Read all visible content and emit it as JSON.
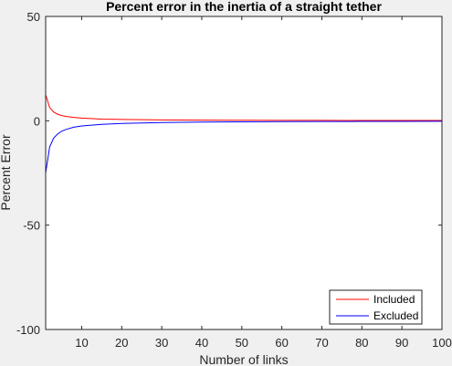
{
  "chart_data": {
    "type": "line",
    "title": "Percent error in the inertia of a straight tether",
    "xlabel": "Number of links",
    "ylabel": "Percent Error",
    "xlim": [
      1,
      100
    ],
    "ylim": [
      -100,
      50
    ],
    "xticks": [
      10,
      20,
      30,
      40,
      50,
      60,
      70,
      80,
      90,
      100
    ],
    "yticks": [
      -100,
      -50,
      0,
      50
    ],
    "legend_position": "bottom-right",
    "grid": false,
    "series": [
      {
        "name": "Included",
        "color": "#ff0000",
        "x": [
          1,
          2,
          3,
          4,
          5,
          6,
          8,
          10,
          15,
          20,
          30,
          40,
          50,
          60,
          70,
          80,
          90,
          100
        ],
        "y": [
          12.5,
          6.3,
          4.2,
          3.1,
          2.5,
          2.1,
          1.6,
          1.3,
          0.83,
          0.63,
          0.42,
          0.31,
          0.25,
          0.21,
          0.18,
          0.16,
          0.14,
          0.13
        ]
      },
      {
        "name": "Excluded",
        "color": "#0000ff",
        "x": [
          1,
          2,
          3,
          4,
          5,
          6,
          8,
          10,
          15,
          20,
          30,
          40,
          50,
          60,
          70,
          80,
          90,
          100
        ],
        "y": [
          -25,
          -12.5,
          -8.3,
          -6.3,
          -5,
          -4.2,
          -3.1,
          -2.5,
          -1.7,
          -1.25,
          -0.83,
          -0.63,
          -0.5,
          -0.42,
          -0.36,
          -0.31,
          -0.28,
          -0.25
        ]
      }
    ]
  }
}
